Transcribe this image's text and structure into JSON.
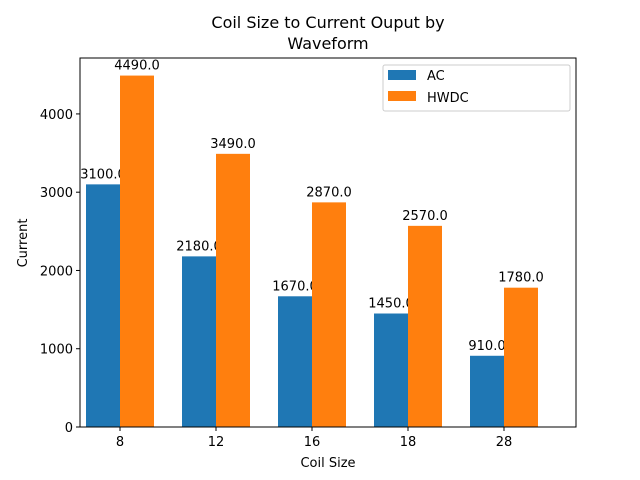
{
  "chart_data": {
    "type": "bar",
    "title_lines": [
      "Coil Size to Current Ouput by",
      "Waveform"
    ],
    "xlabel": "Coil Size",
    "ylabel": "Current",
    "categories": [
      "8",
      "12",
      "16",
      "18",
      "28"
    ],
    "series": [
      {
        "name": "AC",
        "color": "#1f77b4",
        "values": [
          3100,
          2180,
          1670,
          1450,
          910
        ],
        "labels": [
          "3100.0",
          "2180.0",
          "1670.0",
          "1450.0",
          "910.0"
        ]
      },
      {
        "name": "HWDC",
        "color": "#ff7f0e",
        "values": [
          4490,
          3490,
          2870,
          2570,
          1780
        ],
        "labels": [
          "4490.0",
          "3490.0",
          "2870.0",
          "2570.0",
          "1780.0"
        ]
      }
    ],
    "yticks": [
      0,
      1000,
      2000,
      3000,
      4000
    ],
    "ylim": [
      0,
      4714.5
    ],
    "grid": false,
    "legend_position": "upper-right"
  }
}
